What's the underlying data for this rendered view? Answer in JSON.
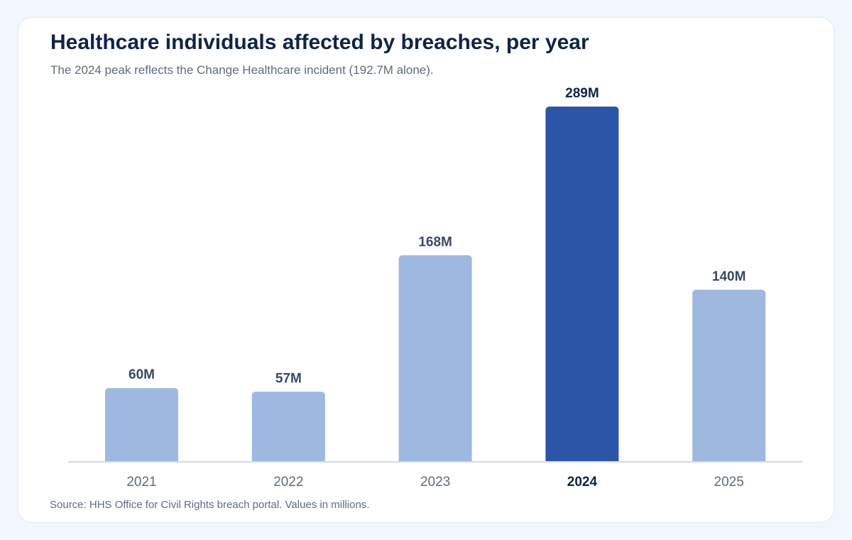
{
  "chart_data": {
    "type": "bar",
    "title": "Healthcare individuals affected by breaches, per year",
    "subtitle": "The 2024 peak reflects the Change Healthcare incident (192.7M alone).",
    "xlabel": "",
    "ylabel": "",
    "categories": [
      "2021",
      "2022",
      "2023",
      "2024",
      "2025"
    ],
    "values": [
      60,
      57,
      168,
      289,
      140
    ],
    "value_labels": [
      "60M",
      "57M",
      "168M",
      "289M",
      "140M"
    ],
    "highlight": "2024",
    "ylim": [
      0,
      289
    ],
    "grid": false,
    "source": "Source: HHS Office for Civil Rights breach portal. Values in millions."
  },
  "colors": {
    "bar": "#9eb8e0",
    "highlight_bar": "#2c55a8",
    "axis": "#d3d9e3",
    "label": "#3b4a63",
    "highlight_label": "#0f2446",
    "tick": "#5e6b80"
  }
}
